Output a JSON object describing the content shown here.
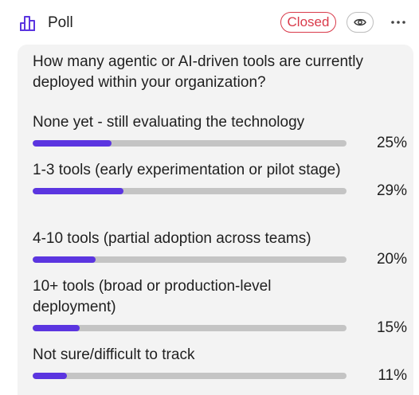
{
  "header": {
    "title": "Poll",
    "status": "Closed",
    "icons": {
      "poll": "bar-chart-icon",
      "view": "eye-icon",
      "more": "more-horizontal-icon"
    },
    "colors": {
      "accent": "#5b35e0",
      "closed": "#d93a4a"
    }
  },
  "poll": {
    "question": "How many agentic or AI-driven tools are currently deployed within your organization?",
    "options": [
      {
        "label": "None yet - still evaluating the technology",
        "percent": 25,
        "percent_label": "25%"
      },
      {
        "label": "1-3 tools (early experimentation or pilot stage)",
        "percent": 29,
        "percent_label": "29%"
      },
      {
        "label": "4-10 tools (partial adoption across teams)",
        "percent": 20,
        "percent_label": "20%"
      },
      {
        "label": "10+ tools (broad or production-level deployment)",
        "percent": 15,
        "percent_label": "15%"
      },
      {
        "label": "Not sure/difficult to track",
        "percent": 11,
        "percent_label": "11%"
      }
    ]
  }
}
